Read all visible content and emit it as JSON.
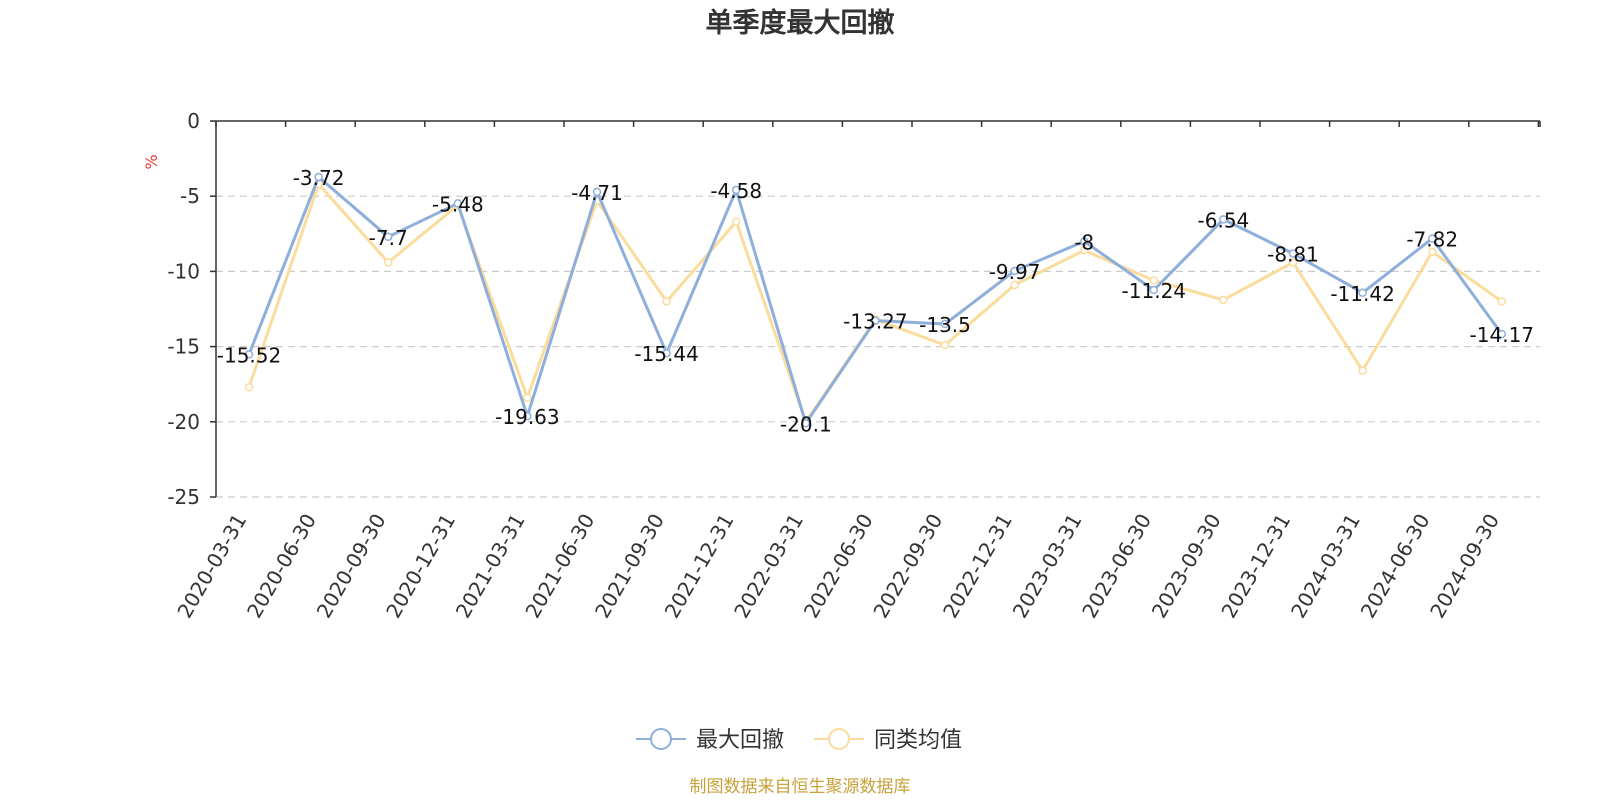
{
  "chart_data": {
    "type": "line",
    "title": "单季度最大回撤",
    "ylabel": "%",
    "ylim": [
      -25,
      0
    ],
    "yticks": [
      0,
      -5,
      -10,
      -15,
      -20,
      -25
    ],
    "grid": true,
    "legend_position": "bottom-center",
    "categories": [
      "2020-03-31",
      "2020-06-30",
      "2020-09-30",
      "2020-12-31",
      "2021-03-31",
      "2021-06-30",
      "2021-09-30",
      "2021-12-31",
      "2022-03-31",
      "2022-06-30",
      "2022-09-30",
      "2022-12-31",
      "2023-03-31",
      "2023-06-30",
      "2023-09-30",
      "2023-12-31",
      "2024-03-31",
      "2024-06-30",
      "2024-09-30"
    ],
    "series": [
      {
        "name": "最大回撤",
        "color": "#8eaedb",
        "values": [
          -15.52,
          -3.72,
          -7.7,
          -5.48,
          -19.63,
          -4.71,
          -15.44,
          -4.58,
          -20.1,
          -13.27,
          -13.5,
          -9.97,
          -8,
          -11.24,
          -6.54,
          -8.81,
          -11.42,
          -7.82,
          -14.17
        ]
      },
      {
        "name": "同类均值",
        "color": "#fbdc9c",
        "values": [
          -17.7,
          -4.2,
          -9.4,
          -5.6,
          -18.4,
          -5.3,
          -12.0,
          -6.7,
          -20.0,
          -13.2,
          -14.9,
          -10.9,
          -8.6,
          -10.6,
          -11.9,
          -9.4,
          -16.6,
          -8.7,
          -12.0
        ]
      }
    ],
    "data_labels_series": "最大回撤",
    "source_text": "制图数据来自恒生聚源数据库",
    "colors": {
      "axis": "#333333",
      "grid": "#cccccc",
      "unit": "#e53935",
      "source": "#c9a13b"
    }
  }
}
